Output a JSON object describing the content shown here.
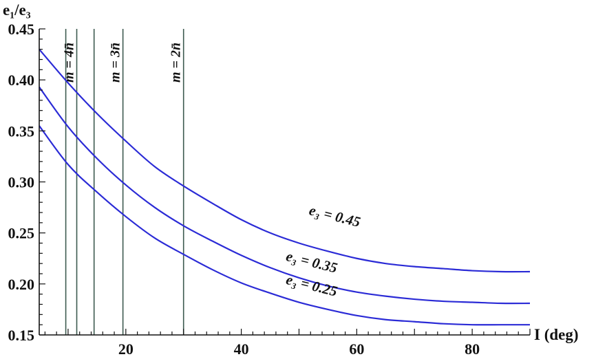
{
  "chart_data": {
    "type": "line",
    "ylabel": "e₁/e₃",
    "xlabel": "I (deg)",
    "xlim": [
      5,
      90
    ],
    "ylim": [
      0.15,
      0.45
    ],
    "xticks": [
      20,
      40,
      60,
      80
    ],
    "yticks": [
      "0.15",
      "0.20",
      "0.25",
      "0.30",
      "0.35",
      "0.40",
      "0.45"
    ],
    "grid": false,
    "colors": {
      "curve": "#2b2bd6",
      "vline": "#3d5a4f",
      "axis": "#111111"
    },
    "vertical_lines": [
      {
        "x": 9.6,
        "label": ""
      },
      {
        "x": 11.5,
        "label": "m = 4n̄"
      },
      {
        "x": 14.5,
        "label": ""
      },
      {
        "x": 19.5,
        "label": "m = 3n̄"
      },
      {
        "x": 30.0,
        "label": "m = 2n̄"
      }
    ],
    "series": [
      {
        "name": "e₃ = 0.45",
        "x": [
          5,
          10,
          15,
          20,
          25,
          30,
          35,
          40,
          45,
          50,
          55,
          60,
          65,
          70,
          75,
          80,
          85,
          90
        ],
        "y": [
          0.43,
          0.397,
          0.367,
          0.34,
          0.315,
          0.296,
          0.279,
          0.263,
          0.25,
          0.24,
          0.232,
          0.225,
          0.22,
          0.217,
          0.215,
          0.213,
          0.212,
          0.212
        ]
      },
      {
        "name": "e₃ = 0.35",
        "x": [
          5,
          10,
          15,
          20,
          25,
          30,
          35,
          40,
          45,
          50,
          55,
          60,
          65,
          70,
          75,
          80,
          85,
          90
        ],
        "y": [
          0.393,
          0.354,
          0.323,
          0.297,
          0.275,
          0.257,
          0.242,
          0.228,
          0.216,
          0.206,
          0.198,
          0.192,
          0.188,
          0.185,
          0.183,
          0.182,
          0.181,
          0.181
        ]
      },
      {
        "name": "e₃ = 0.25",
        "x": [
          5,
          10,
          15,
          20,
          25,
          30,
          35,
          40,
          45,
          50,
          55,
          60,
          65,
          70,
          75,
          80,
          85,
          90
        ],
        "y": [
          0.355,
          0.317,
          0.29,
          0.266,
          0.245,
          0.229,
          0.214,
          0.201,
          0.191,
          0.182,
          0.175,
          0.169,
          0.165,
          0.163,
          0.161,
          0.16,
          0.16,
          0.16
        ]
      }
    ]
  }
}
